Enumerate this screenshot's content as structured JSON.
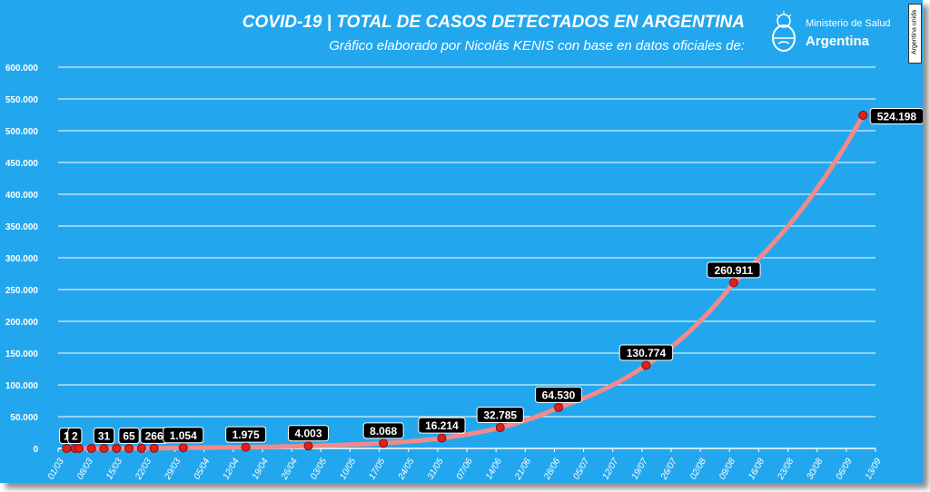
{
  "header": {
    "title": "COVID-19  |  TOTAL DE CASOS DETECTADOS EN ARGENTINA",
    "subtitle": "Gráfico elaborado por Nicolás KENIS con base en datos oficiales de:",
    "logo_line1": "Ministerio de Salud",
    "logo_line2": "Argentina",
    "badge_text": "Argentina unida"
  },
  "colors": {
    "background": "#22a7ee",
    "gridline": "#ffffff",
    "series_line": "#f28a8a",
    "marker": "#e0201b",
    "label_box": "#000000"
  },
  "chart_data": {
    "type": "line",
    "title": "COVID-19  |  TOTAL DE CASOS DETECTADOS EN ARGENTINA",
    "subtitle": "Gráfico elaborado por Nicolás KENIS con base en datos oficiales de:",
    "xlabel": "",
    "ylabel": "",
    "grid": true,
    "legend": "none",
    "ylim": [
      0,
      600000
    ],
    "xlim": [
      "01/03",
      "13/09"
    ],
    "y_ticks": [
      "0",
      "50.000",
      "100.000",
      "150.000",
      "200.000",
      "250.000",
      "300.000",
      "350.000",
      "400.000",
      "450.000",
      "500.000",
      "550.000",
      "600.000"
    ],
    "x_ticks": [
      "01/03",
      "08/03",
      "15/03",
      "22/03",
      "29/03",
      "05/04",
      "12/04",
      "19/04",
      "26/04",
      "03/05",
      "10/05",
      "17/05",
      "24/05",
      "31/05",
      "07/06",
      "14/06",
      "21/06",
      "28/06",
      "05/07",
      "12/07",
      "19/07",
      "26/07",
      "02/08",
      "09/08",
      "16/08",
      "23/08",
      "30/08",
      "06/09",
      "13/09"
    ],
    "series": [
      {
        "points": [
          {
            "x": "03/03",
            "y": 1
          },
          {
            "x": "05/03",
            "y": 2
          },
          {
            "x": "06/03",
            "y": 8
          },
          {
            "x": "09/03",
            "y": 17
          },
          {
            "x": "12/03",
            "y": 31
          },
          {
            "x": "15/03",
            "y": 45
          },
          {
            "x": "18/03",
            "y": 65
          },
          {
            "x": "21/03",
            "y": 158
          },
          {
            "x": "24/03",
            "y": 266
          },
          {
            "x": "31/03",
            "y": 1054
          },
          {
            "x": "15/04",
            "y": 1975
          },
          {
            "x": "30/04",
            "y": 4003
          },
          {
            "x": "18/05",
            "y": 8068
          },
          {
            "x": "01/06",
            "y": 16214
          },
          {
            "x": "15/06",
            "y": 32785
          },
          {
            "x": "29/06",
            "y": 64530
          },
          {
            "x": "20/07",
            "y": 130774
          },
          {
            "x": "10/08",
            "y": 260911
          },
          {
            "x": "10/09",
            "y": 524198
          }
        ]
      }
    ],
    "annotations": [
      {
        "x": "03/03",
        "y": 1,
        "text": "1"
      },
      {
        "x": "05/03",
        "y": 2,
        "text": "2"
      },
      {
        "x": "12/03",
        "y": 31,
        "text": "31"
      },
      {
        "x": "18/03",
        "y": 65,
        "text": "65"
      },
      {
        "x": "24/03",
        "y": 266,
        "text": "266"
      },
      {
        "x": "31/03",
        "y": 1054,
        "text": "1.054"
      },
      {
        "x": "15/04",
        "y": 1975,
        "text": "1.975"
      },
      {
        "x": "30/04",
        "y": 4003,
        "text": "4.003"
      },
      {
        "x": "18/05",
        "y": 8068,
        "text": "8.068"
      },
      {
        "x": "01/06",
        "y": 16214,
        "text": "16.214"
      },
      {
        "x": "15/06",
        "y": 32785,
        "text": "32.785"
      },
      {
        "x": "29/06",
        "y": 64530,
        "text": "64.530"
      },
      {
        "x": "20/07",
        "y": 130774,
        "text": "130.774"
      },
      {
        "x": "10/08",
        "y": 260911,
        "text": "260.911"
      },
      {
        "x": "10/09",
        "y": 524198,
        "text": "524.198"
      }
    ]
  }
}
